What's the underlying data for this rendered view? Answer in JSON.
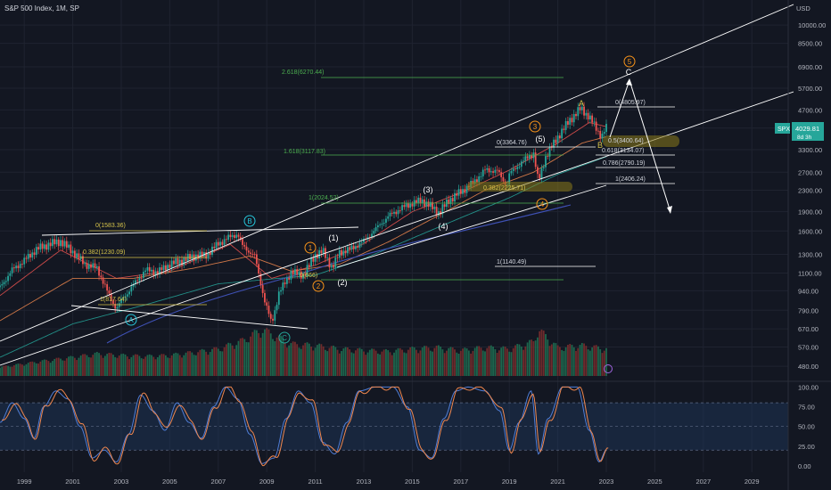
{
  "header": {
    "title": "S&P 500 Index, 1M, SP",
    "currency": "USD"
  },
  "price_badge": {
    "symbol": "SPX",
    "value": "4029.81",
    "countdown": "8d 3h"
  },
  "colors": {
    "bg": "#131722",
    "up": "#26a69a",
    "down": "#ef5350",
    "grid": "#1f2330",
    "axis_text": "#b2b5be",
    "fib_green": "#4caf50",
    "fib_yellow": "#d4c24a",
    "wave_orange": "#f7931a",
    "wave_teal": "#26c6da",
    "osc_blue": "#4f7dd6",
    "osc_orange": "#f0874e",
    "channel": "#ffffff"
  },
  "chart_data": [
    {
      "type": "candlestick",
      "title": "S&P 500 Index, 1M, SP",
      "scale": "log",
      "ylim": [
        430,
        12500
      ],
      "xlim": [
        1998.0,
        2030.5
      ],
      "y_ticks": [
        480,
        570,
        670,
        790,
        940,
        1100,
        1300,
        1600,
        1900,
        2300,
        2700,
        3300,
        4000,
        4700,
        5700,
        6900,
        8500,
        10000
      ],
      "y_tick_labels": [
        "480.00",
        "570.00",
        "670.00",
        "790.00",
        "940.00",
        "1100.00",
        "1300.00",
        "1600.00",
        "1900.00",
        "2300.00",
        "2700.00",
        "3300.00",
        "4000.00",
        "4700.00",
        "5700.00",
        "6900.00",
        "8500.00",
        "10000.00"
      ],
      "x_ticks": [
        "1999",
        "2001",
        "2003",
        "2005",
        "2007",
        "2009",
        "2011",
        "2013",
        "2015",
        "2017",
        "2019",
        "2021",
        "2023",
        "2025",
        "2027",
        "2029"
      ],
      "series": [
        {
          "name": "SPX",
          "x": [
            1998.0,
            1998.5,
            1999.0,
            1999.5,
            2000.0,
            2000.5,
            2001.0,
            2001.5,
            2002.0,
            2002.5,
            2002.8,
            2003.0,
            2003.5,
            2004.0,
            2004.5,
            2005.0,
            2005.5,
            2006.0,
            2006.5,
            2007.0,
            2007.5,
            2007.8,
            2008.0,
            2008.5,
            2008.9,
            2009.2,
            2009.5,
            2010.0,
            2010.5,
            2011.0,
            2011.3,
            2011.7,
            2012.0,
            2012.5,
            2013.0,
            2013.5,
            2014.0,
            2014.5,
            2015.0,
            2015.4,
            2015.9,
            2016.1,
            2016.5,
            2017.0,
            2017.5,
            2018.0,
            2018.5,
            2018.9,
            2019.0,
            2019.5,
            2020.0,
            2020.2,
            2020.5,
            2021.0,
            2021.5,
            2021.95,
            2022.3,
            2022.8,
            2023.0
          ],
          "y": [
            970,
            1130,
            1230,
            1360,
            1420,
            1460,
            1330,
            1190,
            1150,
            900,
            800,
            860,
            990,
            1130,
            1110,
            1190,
            1230,
            1280,
            1290,
            1430,
            1520,
            1560,
            1400,
            1280,
            870,
            700,
            920,
            1110,
            1080,
            1290,
            1340,
            1150,
            1320,
            1370,
            1460,
            1630,
            1820,
            1950,
            2050,
            2100,
            1950,
            1880,
            2100,
            2270,
            2450,
            2750,
            2730,
            2390,
            2650,
            2950,
            3200,
            2470,
            3100,
            3700,
            4300,
            4770,
            4400,
            3700,
            4030
          ]
        },
        {
          "name": "MA-fast",
          "x": [
            1998.0,
            2000.5,
            2002.8,
            2005.0,
            2007.5,
            2009.2,
            2011.0,
            2013.0,
            2015.0,
            2017.0,
            2019.0,
            2021.0,
            2022.3,
            2023.0
          ],
          "y": [
            900,
            1350,
            1050,
            1120,
            1420,
            1050,
            1180,
            1430,
            1900,
            2250,
            2750,
            3500,
            4200,
            4050
          ]
        },
        {
          "name": "MA-mid",
          "x": [
            1998.0,
            2001.0,
            2003.5,
            2006.0,
            2008.3,
            2010.0,
            2012.0,
            2014.0,
            2016.0,
            2018.0,
            2020.0,
            2022.0,
            2023.0
          ],
          "y": [
            720,
            1050,
            1050,
            1150,
            1280,
            1120,
            1190,
            1450,
            1820,
            2300,
            2700,
            3500,
            3700
          ]
        },
        {
          "name": "MA-slow",
          "x": [
            1998.0,
            2001.0,
            2004.0,
            2007.0,
            2009.5,
            2011.0,
            2013.0,
            2015.0,
            2017.0,
            2019.0,
            2021.0,
            2023.0
          ],
          "y": [
            520,
            700,
            830,
            1000,
            1050,
            1080,
            1250,
            1500,
            1800,
            2150,
            2650,
            3100
          ]
        }
      ]
    },
    {
      "type": "bar",
      "title": "",
      "series": [
        {
          "name": "Volume",
          "x": [
            1998.0,
            1999.0,
            2000.0,
            2001.0,
            2002.0,
            2003.0,
            2004.0,
            2005.0,
            2006.0,
            2007.0,
            2008.0,
            2008.8,
            2009.2,
            2010.0,
            2011.0,
            2012.0,
            2013.0,
            2014.0,
            2015.0,
            2016.0,
            2017.0,
            2018.0,
            2019.0,
            2020.0,
            2020.2,
            2021.0,
            2022.0,
            2023.0
          ],
          "values": [
            0.18,
            0.25,
            0.32,
            0.38,
            0.45,
            0.42,
            0.4,
            0.42,
            0.48,
            0.55,
            0.72,
            0.95,
            0.85,
            0.65,
            0.62,
            0.55,
            0.52,
            0.5,
            0.55,
            0.58,
            0.52,
            0.58,
            0.55,
            0.7,
            0.95,
            0.58,
            0.62,
            0.55
          ]
        }
      ]
    },
    {
      "type": "line",
      "title": "",
      "ylim": [
        -8,
        105
      ],
      "y_ticks": [
        0,
        25,
        50,
        75,
        100
      ],
      "y_tick_labels": [
        "0.00",
        "25.00",
        "50.00",
        "75.00",
        "100.00"
      ],
      "series": [
        {
          "name": "%K",
          "x": [
            1998.0,
            1998.5,
            1999.0,
            1999.4,
            1999.8,
            2000.3,
            2000.8,
            2001.3,
            2001.8,
            2002.3,
            2002.8,
            2003.3,
            2003.8,
            2004.3,
            2004.8,
            2005.3,
            2005.8,
            2006.3,
            2006.8,
            2007.3,
            2007.8,
            2008.3,
            2008.8,
            2009.3,
            2009.8,
            2010.3,
            2010.8,
            2011.3,
            2011.8,
            2012.3,
            2012.8,
            2013.5,
            2014.2,
            2014.8,
            2015.3,
            2015.8,
            2016.3,
            2016.8,
            2017.3,
            2018.0,
            2018.6,
            2019.0,
            2019.4,
            2019.9,
            2020.2,
            2020.6,
            2021.2,
            2021.8,
            2022.3,
            2022.7,
            2023.0
          ],
          "values": [
            55,
            80,
            60,
            35,
            75,
            95,
            85,
            50,
            10,
            20,
            5,
            40,
            90,
            70,
            45,
            80,
            55,
            35,
            75,
            100,
            85,
            40,
            3,
            10,
            60,
            95,
            80,
            30,
            15,
            55,
            95,
            100,
            100,
            75,
            20,
            10,
            60,
            95,
            100,
            95,
            70,
            20,
            55,
            95,
            15,
            60,
            100,
            100,
            45,
            5,
            20
          ]
        }
      ]
    }
  ],
  "markers": {
    "label_1583": "0(1583.36)",
    "label_1230": "0.382(1230.09)",
    "label_817": "1(817.64)",
    "wave_A_circle": "A",
    "wave_B_circle": "B",
    "wave_C_circle": "C",
    "w1_orange": "1",
    "w2_orange": "2",
    "w3_orange": "3",
    "w4_orange": "4",
    "w5_orange": "5",
    "w1_white": "(1)",
    "w2_white": "(2)",
    "w3_white": "(3)",
    "w4_white": "(4)",
    "w5_white": "(5)",
    "label_666": "0(666)",
    "fib_2024": "1(2024.52)",
    "fib_3117": "1.618(3117.83)",
    "fib_6270": "2.618(6270.44)",
    "fib_1140": "1(1140.49)",
    "fib_3364": "0(3364.76)",
    "fib_2225": "0.382(2225.71)",
    "fib_4805": "0(4805.97)",
    "fib_3400": "0.5(3400.64)",
    "fib_3134": "0.618(3134.07)",
    "fib_2790": "0.786(2790.19)",
    "fib_2406": "1(2406.24)",
    "abc_A": "A",
    "abc_B": "B",
    "abc_C": "C"
  }
}
